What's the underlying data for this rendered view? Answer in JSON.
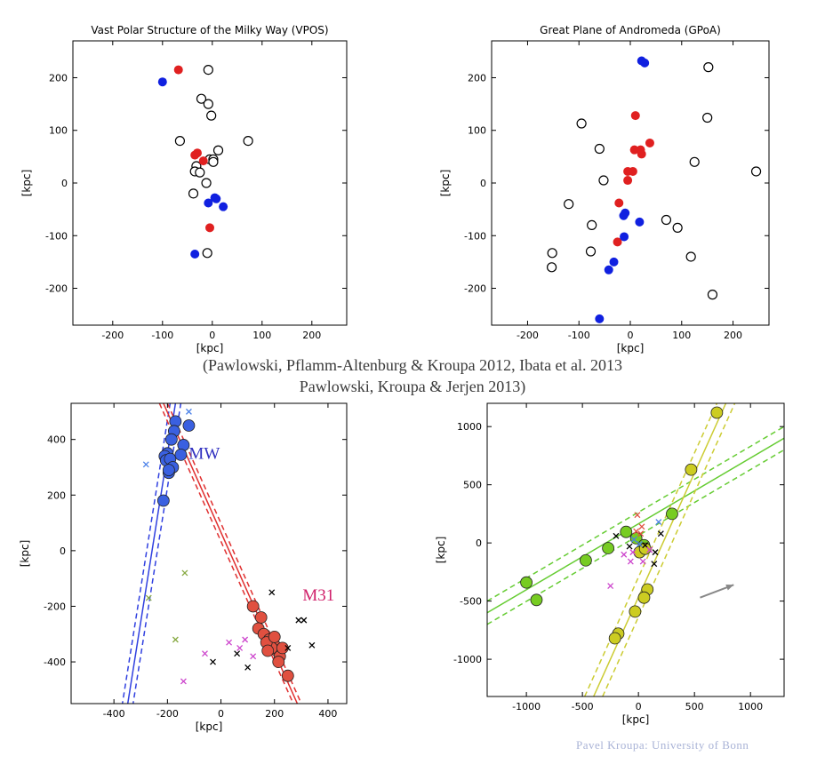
{
  "citation_line1": "(Pawlowski, Pflamm-Altenburg & Kroupa 2012, Ibata et al. 2013",
  "citation_line2": "Pawlowski, Kroupa & Jerjen 2013)",
  "credit": "Pavel Kroupa:   University of Bonn",
  "chart_data": [
    {
      "type": "scatter",
      "title": "Vast Polar Structure of the Milky Way (VPOS)",
      "xlabel": "[kpc]",
      "ylabel": "[kpc]",
      "xlim": [
        -280,
        270
      ],
      "ylim": [
        -270,
        270
      ],
      "xticks": [
        -200,
        -100,
        0,
        100,
        200
      ],
      "yticks": [
        -200,
        -100,
        0,
        100,
        200
      ],
      "series": [
        {
          "name": "open",
          "color": "#000000",
          "points": [
            [
              -8,
              215
            ],
            [
              -22,
              160
            ],
            [
              -8,
              150
            ],
            [
              -2,
              128
            ],
            [
              -65,
              80
            ],
            [
              72,
              80
            ],
            [
              12,
              62
            ],
            [
              -5,
              45
            ],
            [
              2,
              45
            ],
            [
              2,
              40
            ],
            [
              -32,
              32
            ],
            [
              -35,
              22
            ],
            [
              -25,
              20
            ],
            [
              -12,
              0
            ],
            [
              -38,
              -20
            ],
            [
              -10,
              -133
            ]
          ]
        },
        {
          "name": "red",
          "color": "#e02020",
          "points": [
            [
              -68,
              215
            ],
            [
              -30,
              57
            ],
            [
              -35,
              53
            ],
            [
              -18,
              42
            ],
            [
              -5,
              -85
            ]
          ]
        },
        {
          "name": "blue",
          "color": "#1020e0",
          "points": [
            [
              -100,
              192
            ],
            [
              -8,
              -38
            ],
            [
              5,
              -28
            ],
            [
              8,
              -30
            ],
            [
              22,
              -45
            ],
            [
              -35,
              -135
            ]
          ]
        }
      ]
    },
    {
      "type": "scatter",
      "title": "Great Plane of Andromeda (GPoA)",
      "xlabel": "[kpc]",
      "ylabel": "[kpc]",
      "xlim": [
        -270,
        270
      ],
      "ylim": [
        -270,
        270
      ],
      "xticks": [
        -200,
        -100,
        0,
        100,
        200
      ],
      "yticks": [
        -200,
        -100,
        0,
        100,
        200
      ],
      "series": [
        {
          "name": "open",
          "color": "#000000",
          "points": [
            [
              152,
              220
            ],
            [
              -95,
              113
            ],
            [
              150,
              124
            ],
            [
              -60,
              65
            ],
            [
              125,
              40
            ],
            [
              245,
              22
            ],
            [
              -52,
              5
            ],
            [
              -120,
              -40
            ],
            [
              -75,
              -80
            ],
            [
              70,
              -70
            ],
            [
              92,
              -85
            ],
            [
              -152,
              -133
            ],
            [
              -77,
              -130
            ],
            [
              118,
              -140
            ],
            [
              -153,
              -160
            ],
            [
              160,
              -212
            ]
          ]
        },
        {
          "name": "red",
          "color": "#e02020",
          "points": [
            [
              10,
              128
            ],
            [
              8,
              63
            ],
            [
              20,
              63
            ],
            [
              38,
              76
            ],
            [
              22,
              55
            ],
            [
              5,
              22
            ],
            [
              -5,
              22
            ],
            [
              -5,
              5
            ],
            [
              -22,
              -38
            ],
            [
              -25,
              -112
            ]
          ]
        },
        {
          "name": "blue",
          "color": "#1020e0",
          "points": [
            [
              22,
              232
            ],
            [
              28,
              228
            ],
            [
              -10,
              -57
            ],
            [
              -13,
              -62
            ],
            [
              -12,
              -102
            ],
            [
              -32,
              -150
            ],
            [
              -42,
              -165
            ],
            [
              18,
              -74
            ],
            [
              -60,
              -258
            ]
          ]
        }
      ]
    },
    {
      "type": "scatter",
      "title": "",
      "xlabel": "[kpc]",
      "ylabel": "[kpc]",
      "xlim": [
        -560,
        470
      ],
      "ylim": [
        -550,
        530
      ],
      "xticks": [
        -400,
        -200,
        0,
        200,
        400
      ],
      "yticks": [
        -400,
        -200,
        0,
        200,
        400
      ],
      "annotations": [
        {
          "text": "MW",
          "x": -120,
          "y": 330,
          "color": "#3030c0"
        },
        {
          "text": "M31",
          "x": 305,
          "y": -180,
          "color": "#d0206a"
        }
      ],
      "planes": [
        {
          "name": "MW plane",
          "color": "#3040e0",
          "solid": [
            [
              -350,
              -560
            ],
            [
              -170,
              530
            ]
          ],
          "dash1": [
            [
              -370,
              -560
            ],
            [
              -190,
              530
            ]
          ],
          "dash2": [
            [
              -330,
              -560
            ],
            [
              -150,
              530
            ]
          ]
        },
        {
          "name": "M31 plane",
          "color": "#e03030",
          "solid": [
            [
              -215,
              530
            ],
            [
              290,
              -560
            ]
          ],
          "dash1": [
            [
              -230,
              530
            ],
            [
              275,
              -560
            ]
          ],
          "dash2": [
            [
              -200,
              530
            ],
            [
              305,
              -560
            ]
          ]
        }
      ],
      "series": [
        {
          "name": "MW satellites",
          "color": "#3a60e0",
          "points": [
            [
              -170,
              465
            ],
            [
              -175,
              430
            ],
            [
              -140,
              380
            ],
            [
              -120,
              450
            ],
            [
              -185,
              400
            ],
            [
              -200,
              350
            ],
            [
              -210,
              340
            ],
            [
              -205,
              325
            ],
            [
              -190,
              330
            ],
            [
              -180,
              300
            ],
            [
              -195,
              280
            ],
            [
              -150,
              345
            ],
            [
              -215,
              180
            ],
            [
              -195,
              290
            ]
          ]
        },
        {
          "name": "M31 satellites",
          "color": "#e05040",
          "points": [
            [
              120,
              -200
            ],
            [
              150,
              -240
            ],
            [
              140,
              -280
            ],
            [
              160,
              -300
            ],
            [
              180,
              -320
            ],
            [
              200,
              -340
            ],
            [
              210,
              -360
            ],
            [
              190,
              -350
            ],
            [
              170,
              -330
            ],
            [
              220,
              -380
            ],
            [
              230,
              -350
            ],
            [
              200,
              -310
            ],
            [
              250,
              -450
            ],
            [
              175,
              -360
            ],
            [
              215,
              -400
            ]
          ]
        },
        {
          "name": "black crosses",
          "color": "#000000",
          "points": [
            [
              190,
              -150
            ],
            [
              290,
              -250
            ],
            [
              310,
              -250
            ],
            [
              340,
              -340
            ],
            [
              250,
              -350
            ],
            [
              -30,
              -400
            ],
            [
              60,
              -370
            ],
            [
              100,
              -420
            ]
          ]
        },
        {
          "name": "magenta crosses",
          "color": "#cc44cc",
          "points": [
            [
              30,
              -330
            ],
            [
              70,
              -350
            ],
            [
              -60,
              -370
            ],
            [
              120,
              -380
            ],
            [
              -140,
              -470
            ],
            [
              90,
              -320
            ]
          ]
        },
        {
          "name": "green crosses",
          "color": "#88aa44",
          "points": [
            [
              -135,
              -80
            ],
            [
              -170,
              -320
            ],
            [
              -270,
              -170
            ]
          ]
        },
        {
          "name": "blue crosses",
          "color": "#4a80e8",
          "points": [
            [
              -280,
              310
            ],
            [
              -120,
              500
            ]
          ]
        }
      ]
    },
    {
      "type": "scatter",
      "title": "",
      "xlabel": "[kpc]",
      "ylabel": "[kpc]",
      "xlim": [
        -1350,
        1300
      ],
      "ylim": [
        -1320,
        1200
      ],
      "xticks": [
        -1000,
        -500,
        0,
        500,
        1000
      ],
      "yticks": [
        -1000,
        -500,
        0,
        500,
        1000
      ],
      "arrow": {
        "from": [
          550,
          -470
        ],
        "to": [
          850,
          -360
        ],
        "color": "#888888"
      },
      "planes": [
        {
          "name": "green plane",
          "color": "#66cc33",
          "solid": [
            [
              -1350,
              -600
            ],
            [
              1300,
              900
            ]
          ],
          "dash1": [
            [
              -1350,
              -500
            ],
            [
              1300,
              1000
            ]
          ],
          "dash2": [
            [
              -1350,
              -700
            ],
            [
              1300,
              800
            ]
          ]
        },
        {
          "name": "yellow plane",
          "color": "#cccc33",
          "solid": [
            [
              -400,
              -1320
            ],
            [
              780,
              1200
            ]
          ],
          "dash1": [
            [
              -480,
              -1320
            ],
            [
              700,
              1200
            ]
          ],
          "dash2": [
            [
              -320,
              -1320
            ],
            [
              860,
              1200
            ]
          ]
        }
      ],
      "series": [
        {
          "name": "green satellites",
          "color": "#77cc22",
          "points": [
            [
              -1000,
              -340
            ],
            [
              -910,
              -490
            ],
            [
              -470,
              -150
            ],
            [
              -270,
              -45
            ],
            [
              -110,
              95
            ],
            [
              -20,
              40
            ],
            [
              50,
              -20
            ],
            [
              300,
              250
            ]
          ]
        },
        {
          "name": "yellow satellites",
          "color": "#cccc22",
          "points": [
            [
              700,
              1120
            ],
            [
              470,
              630
            ],
            [
              80,
              -400
            ],
            [
              50,
              -470
            ],
            [
              -30,
              -590
            ],
            [
              -180,
              -780
            ],
            [
              -210,
              -820
            ],
            [
              10,
              -80
            ],
            [
              60,
              -50
            ]
          ]
        },
        {
          "name": "black crosses",
          "color": "#000000",
          "points": [
            [
              -200,
              60
            ],
            [
              -80,
              -30
            ],
            [
              60,
              -20
            ],
            [
              150,
              -80
            ],
            [
              140,
              -180
            ],
            [
              200,
              80
            ]
          ]
        },
        {
          "name": "magenta crosses",
          "color": "#cc44cc",
          "points": [
            [
              -250,
              -370
            ],
            [
              -130,
              -100
            ],
            [
              -70,
              -160
            ],
            [
              40,
              -160
            ],
            [
              100,
              -60
            ],
            [
              -50,
              -80
            ]
          ]
        },
        {
          "name": "red crosses",
          "color": "#e05040",
          "points": [
            [
              -10,
              240
            ],
            [
              30,
              140
            ],
            [
              20,
              80
            ],
            [
              -20,
              100
            ]
          ]
        },
        {
          "name": "blue crosses",
          "color": "#4a80e8",
          "points": [
            [
              180,
              180
            ],
            [
              -40,
              30
            ],
            [
              10,
              -10
            ]
          ]
        }
      ]
    }
  ]
}
